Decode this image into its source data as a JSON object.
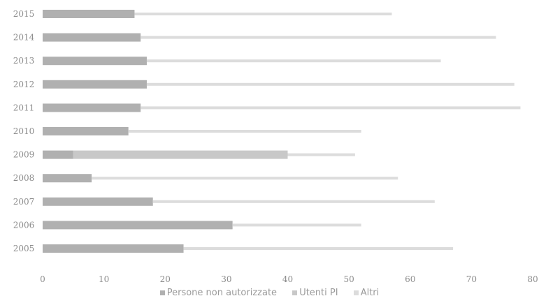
{
  "chart_data": {
    "type": "bar",
    "orientation": "horizontal",
    "stacked": true,
    "categories": [
      "2015",
      "2014",
      "2013",
      "2012",
      "2011",
      "2010",
      "2009",
      "2008",
      "2007",
      "2006",
      "2005"
    ],
    "series": [
      {
        "name": "Persone non autorizzate",
        "color": "#b0b0b0",
        "values": [
          15,
          16,
          17,
          17,
          16,
          14,
          5,
          8,
          18,
          31,
          23
        ]
      },
      {
        "name": "Utenti PI",
        "color": "#c8c8c8",
        "values": [
          0,
          0,
          0,
          0,
          0,
          0,
          35,
          0,
          0,
          0,
          0
        ]
      },
      {
        "name": "Altri",
        "color": "#dcdcdc",
        "values": [
          42,
          58,
          48,
          60,
          62,
          38,
          11,
          50,
          46,
          21,
          44
        ]
      }
    ],
    "xlim": [
      0,
      80
    ],
    "xticks": [
      "0",
      "10",
      "20",
      "30",
      "40",
      "50",
      "60",
      "70",
      "80"
    ],
    "xlabel": "",
    "ylabel": "",
    "title": "",
    "grid": false,
    "legend_position": "bottom"
  }
}
